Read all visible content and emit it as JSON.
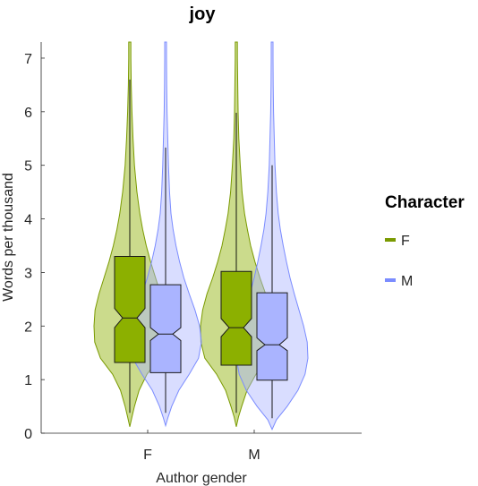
{
  "chart_data": {
    "type": "violin",
    "title": "joy",
    "xlabel": "Author gender",
    "ylabel": "Words per thousand",
    "ylim": [
      0,
      7.3
    ],
    "yticks": [
      0,
      1,
      2,
      3,
      4,
      5,
      6,
      7
    ],
    "categories": [
      "F",
      "M"
    ],
    "legend": {
      "title": "Character",
      "placement": "right",
      "entries": [
        {
          "name": "F",
          "color": "#7a9a01"
        },
        {
          "name": "M",
          "color": "#7b8cff"
        }
      ]
    },
    "series": [
      {
        "name": "F",
        "color": "#7a9a01",
        "fill": "#8cb000",
        "groups": [
          {
            "category": "F",
            "whisker_low": 0.38,
            "q1": 1.32,
            "median": 2.15,
            "q3": 3.3,
            "whisker_high": 6.6,
            "notch_low": 1.97,
            "notch_high": 2.33,
            "violin_min": 0.12,
            "violin_max": 7.3,
            "density": [
              [
                0.12,
                0.0
              ],
              [
                0.3,
                0.06
              ],
              [
                0.5,
                0.13
              ],
              [
                0.8,
                0.26
              ],
              [
                1.1,
                0.48
              ],
              [
                1.4,
                0.82
              ],
              [
                1.7,
                0.98
              ],
              [
                2.0,
                1.0
              ],
              [
                2.3,
                0.97
              ],
              [
                2.6,
                0.86
              ],
              [
                2.9,
                0.72
              ],
              [
                3.2,
                0.58
              ],
              [
                3.5,
                0.46
              ],
              [
                3.8,
                0.36
              ],
              [
                4.1,
                0.28
              ],
              [
                4.5,
                0.2
              ],
              [
                5.0,
                0.13
              ],
              [
                5.5,
                0.09
              ],
              [
                6.0,
                0.06
              ],
              [
                6.5,
                0.04
              ],
              [
                7.0,
                0.03
              ],
              [
                7.3,
                0.03
              ]
            ]
          },
          {
            "category": "M",
            "whisker_low": 0.38,
            "q1": 1.27,
            "median": 1.97,
            "q3": 3.02,
            "whisker_high": 5.98,
            "notch_low": 1.8,
            "notch_high": 2.14,
            "violin_min": 0.12,
            "violin_max": 7.3,
            "density": [
              [
                0.12,
                0.0
              ],
              [
                0.3,
                0.06
              ],
              [
                0.5,
                0.15
              ],
              [
                0.8,
                0.3
              ],
              [
                1.1,
                0.55
              ],
              [
                1.4,
                0.88
              ],
              [
                1.7,
                0.99
              ],
              [
                2.0,
                1.0
              ],
              [
                2.3,
                0.94
              ],
              [
                2.6,
                0.82
              ],
              [
                2.9,
                0.66
              ],
              [
                3.2,
                0.52
              ],
              [
                3.5,
                0.4
              ],
              [
                3.8,
                0.31
              ],
              [
                4.1,
                0.23
              ],
              [
                4.5,
                0.16
              ],
              [
                5.0,
                0.11
              ],
              [
                5.5,
                0.07
              ],
              [
                6.0,
                0.05
              ],
              [
                6.5,
                0.04
              ],
              [
                7.0,
                0.03
              ],
              [
                7.3,
                0.03
              ]
            ]
          }
        ]
      },
      {
        "name": "M",
        "color": "#7b8cff",
        "fill": "#aab4ff",
        "groups": [
          {
            "category": "F",
            "whisker_low": 0.38,
            "q1": 1.13,
            "median": 1.85,
            "q3": 2.77,
            "whisker_high": 5.33,
            "notch_low": 1.73,
            "notch_high": 1.97,
            "violin_min": 0.14,
            "violin_max": 7.3,
            "density": [
              [
                0.14,
                0.0
              ],
              [
                0.3,
                0.07
              ],
              [
                0.5,
                0.17
              ],
              [
                0.8,
                0.37
              ],
              [
                1.1,
                0.66
              ],
              [
                1.4,
                0.92
              ],
              [
                1.7,
                1.0
              ],
              [
                2.0,
                0.95
              ],
              [
                2.3,
                0.82
              ],
              [
                2.6,
                0.66
              ],
              [
                2.9,
                0.51
              ],
              [
                3.2,
                0.39
              ],
              [
                3.5,
                0.29
              ],
              [
                3.8,
                0.21
              ],
              [
                4.1,
                0.15
              ],
              [
                4.5,
                0.11
              ],
              [
                5.0,
                0.08
              ],
              [
                5.5,
                0.06
              ],
              [
                6.0,
                0.04
              ],
              [
                6.5,
                0.03
              ],
              [
                7.0,
                0.025
              ],
              [
                7.3,
                0.025
              ]
            ]
          },
          {
            "category": "M",
            "whisker_low": 0.28,
            "q1": 0.99,
            "median": 1.65,
            "q3": 2.62,
            "whisker_high": 5.0,
            "notch_low": 1.54,
            "notch_high": 1.78,
            "violin_min": 0.07,
            "violin_max": 7.3,
            "density": [
              [
                0.07,
                0.0
              ],
              [
                0.25,
                0.12
              ],
              [
                0.5,
                0.42
              ],
              [
                0.8,
                0.72
              ],
              [
                1.1,
                0.92
              ],
              [
                1.4,
                1.0
              ],
              [
                1.7,
                0.98
              ],
              [
                2.0,
                0.88
              ],
              [
                2.3,
                0.75
              ],
              [
                2.6,
                0.62
              ],
              [
                2.9,
                0.5
              ],
              [
                3.2,
                0.4
              ],
              [
                3.5,
                0.31
              ],
              [
                3.8,
                0.23
              ],
              [
                4.1,
                0.17
              ],
              [
                4.5,
                0.12
              ],
              [
                5.0,
                0.08
              ],
              [
                5.5,
                0.06
              ],
              [
                6.0,
                0.04
              ],
              [
                6.5,
                0.03
              ],
              [
                7.0,
                0.025
              ],
              [
                7.3,
                0.025
              ]
            ]
          }
        ]
      }
    ],
    "grid": false
  }
}
